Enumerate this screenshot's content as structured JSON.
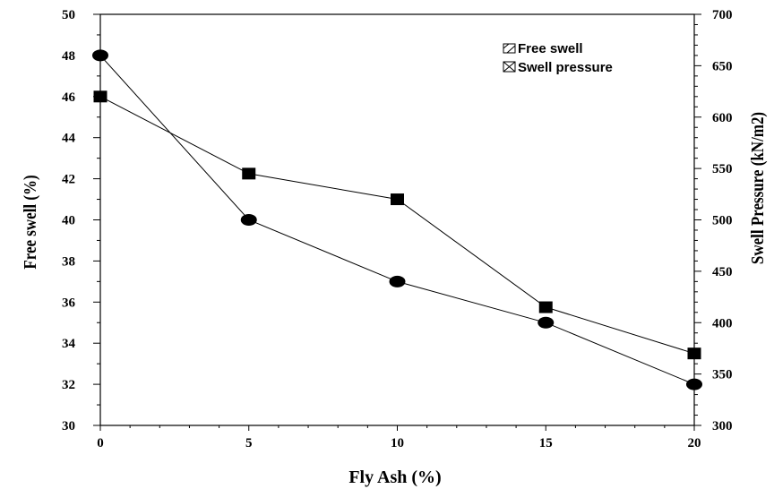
{
  "chart_data": {
    "type": "line",
    "x": [
      0,
      5,
      10,
      15,
      20
    ],
    "xlabel": "Fly Ash (%)",
    "xlim": [
      0,
      20
    ],
    "x_ticks": [
      "0",
      "5",
      "10",
      "15",
      "20"
    ],
    "ylabel_left": "Free swell (%)",
    "ylim_left": [
      30,
      50
    ],
    "y_left_ticks": [
      "30",
      "32",
      "34",
      "36",
      "38",
      "40",
      "42",
      "44",
      "46",
      "48",
      "50"
    ],
    "ylabel_right": "Swell Pressure (kN/m2)",
    "ylim_right": [
      300,
      700
    ],
    "y_right_ticks": [
      "300",
      "350",
      "400",
      "450",
      "500",
      "550",
      "600",
      "650",
      "700"
    ],
    "series": [
      {
        "name": "Free swell",
        "axis": "left",
        "marker": "circle",
        "values": [
          48,
          40,
          37,
          35,
          32
        ]
      },
      {
        "name": "Swell pressure",
        "axis": "right",
        "marker": "square",
        "values": [
          620,
          545,
          520,
          415,
          370
        ]
      }
    ],
    "legend": {
      "placement": "top-right",
      "entries": [
        "Free swell",
        "Swell pressure"
      ]
    },
    "grid": false,
    "colors": {
      "line": "#000000",
      "marker": "#000000"
    }
  }
}
